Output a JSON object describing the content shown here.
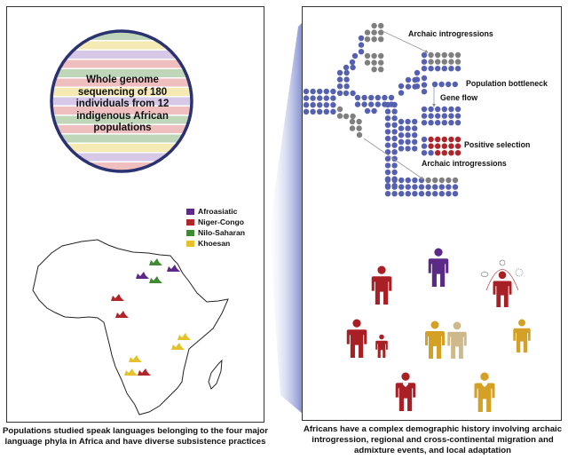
{
  "left_panel": {
    "circle_text": "Whole genome sequencing of 180 individuals from 12 indigenous African populations",
    "legend": [
      {
        "label": "Afroasiatic",
        "color": "#5b2a86"
      },
      {
        "label": "Niger-Congo",
        "color": "#b0252a"
      },
      {
        "label": "Nilo-Saharan",
        "color": "#3f8a32"
      },
      {
        "label": "Khoesan",
        "color": "#e4c22a"
      }
    ],
    "caption": "Populations studied speak languages belonging to the four major language phyla in Africa and have diverse subsistence practices"
  },
  "right_panel": {
    "labels": {
      "archaic_top": "Archaic introgressions",
      "bottleneck": "Population bottleneck",
      "gene_flow": "Gene flow",
      "positive_selection": "Positive selection",
      "archaic_bottom": "Archaic introgressions"
    },
    "colors": {
      "population": "#5560b0",
      "archaic": "#7f7f7f",
      "selection": "#b0252a",
      "gold": "#d4a026",
      "tan": "#cdb98a",
      "purple": "#5b2a86",
      "red": "#a82025"
    },
    "caption": "Africans have a complex demographic history involving archaic introgression, regional and cross-continental migration and admixture events, and local adaptation"
  }
}
